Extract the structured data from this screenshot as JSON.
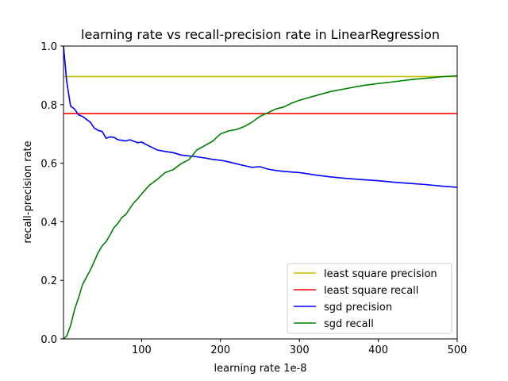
{
  "chart_data": {
    "type": "line",
    "title": "learning rate vs recall-precision rate in LinearRegression",
    "xlabel": "learning rate 1e-8",
    "ylabel": "recall-precision rate",
    "xlim": [
      1,
      500
    ],
    "ylim": [
      0.0,
      1.0
    ],
    "xticks": [
      100,
      200,
      300,
      400,
      500
    ],
    "yticks": [
      0.0,
      0.2,
      0.4,
      0.6,
      0.8,
      1.0
    ],
    "xtick_labels": [
      "100",
      "200",
      "300",
      "400",
      "500"
    ],
    "ytick_labels": [
      "0.0",
      "0.2",
      "0.4",
      "0.6",
      "0.8",
      "1.0"
    ],
    "grid": false,
    "legend_position": "lower-right",
    "series": [
      {
        "name": "least square precision",
        "color": "#bfbf00",
        "x": [
          1,
          500
        ],
        "y": [
          0.896,
          0.896
        ]
      },
      {
        "name": "least square recall",
        "color": "#ff0000",
        "x": [
          1,
          500
        ],
        "y": [
          0.769,
          0.769
        ]
      },
      {
        "name": "sgd precision",
        "color": "#0000ff",
        "x": [
          1,
          5,
          10,
          15,
          20,
          25,
          30,
          35,
          40,
          45,
          50,
          55,
          60,
          65,
          70,
          75,
          80,
          85,
          90,
          95,
          100,
          110,
          120,
          130,
          140,
          150,
          160,
          170,
          180,
          190,
          200,
          210,
          220,
          230,
          240,
          250,
          260,
          270,
          280,
          290,
          300,
          320,
          340,
          360,
          380,
          400,
          420,
          440,
          460,
          480,
          500
        ],
        "y": [
          1.0,
          0.88,
          0.795,
          0.785,
          0.765,
          0.76,
          0.75,
          0.74,
          0.72,
          0.712,
          0.708,
          0.685,
          0.69,
          0.688,
          0.68,
          0.678,
          0.676,
          0.68,
          0.675,
          0.67,
          0.672,
          0.658,
          0.645,
          0.64,
          0.636,
          0.628,
          0.625,
          0.622,
          0.618,
          0.613,
          0.61,
          0.605,
          0.598,
          0.592,
          0.586,
          0.588,
          0.58,
          0.575,
          0.572,
          0.57,
          0.568,
          0.56,
          0.553,
          0.548,
          0.544,
          0.54,
          0.535,
          0.531,
          0.527,
          0.522,
          0.518
        ]
      },
      {
        "name": "sgd recall",
        "color": "#008000",
        "x": [
          1,
          5,
          10,
          15,
          20,
          25,
          30,
          35,
          40,
          45,
          50,
          55,
          60,
          65,
          70,
          75,
          80,
          85,
          90,
          95,
          100,
          110,
          120,
          130,
          140,
          150,
          160,
          170,
          180,
          190,
          200,
          210,
          220,
          230,
          240,
          250,
          260,
          270,
          280,
          290,
          300,
          320,
          340,
          360,
          380,
          400,
          420,
          440,
          460,
          480,
          500
        ],
        "y": [
          0.0,
          0.01,
          0.045,
          0.1,
          0.14,
          0.185,
          0.21,
          0.235,
          0.265,
          0.295,
          0.318,
          0.332,
          0.355,
          0.38,
          0.395,
          0.415,
          0.425,
          0.445,
          0.465,
          0.478,
          0.495,
          0.525,
          0.545,
          0.568,
          0.578,
          0.598,
          0.612,
          0.645,
          0.66,
          0.675,
          0.7,
          0.71,
          0.715,
          0.725,
          0.74,
          0.76,
          0.772,
          0.785,
          0.792,
          0.805,
          0.815,
          0.83,
          0.845,
          0.855,
          0.865,
          0.872,
          0.878,
          0.885,
          0.89,
          0.895,
          0.898
        ]
      }
    ]
  }
}
